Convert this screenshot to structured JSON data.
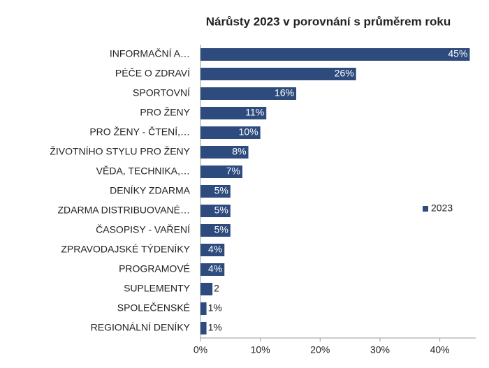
{
  "chart_data": {
    "type": "barh",
    "title": "Nárůsty 2023 v porovnání s průměrem roku",
    "categories": [
      "INFORMAČNÍ A…",
      "PÉČE O ZDRAVÍ",
      "SPORTOVNÍ",
      "PRO ŽENY",
      "PRO ŽENY - ČTENÍ,…",
      "ŽIVOTNÍHO STYLU PRO ŽENY",
      "VĚDA, TECHNIKA,…",
      "DENÍKY ZDARMA",
      "ZDARMA DISTRIBUOVANÉ…",
      "ČASOPISY - VAŘENÍ",
      "ZPRAVODAJSKÉ TÝDENÍKY",
      "PROGRAMOVÉ",
      "SUPLEMENTY",
      "SPOLEČENSKÉ",
      "REGIONÁLNÍ DENÍKY"
    ],
    "series": [
      {
        "name": "2023",
        "color": "#2e4b7d",
        "values": [
          45,
          26,
          16,
          11,
          10,
          8,
          7,
          5,
          5,
          5,
          4,
          4,
          2,
          1,
          1
        ],
        "value_labels": [
          "45%",
          "26%",
          "16%",
          "11%",
          "10%",
          "8%",
          "7%",
          "5%",
          "5%",
          "5%",
          "4%",
          "4%",
          "2",
          "1%",
          "1%"
        ]
      }
    ],
    "xlim": [
      0,
      46
    ],
    "xticks": [
      {
        "value": 0,
        "label": "0%"
      },
      {
        "value": 10,
        "label": "10%"
      },
      {
        "value": 20,
        "label": "20%"
      },
      {
        "value": 30,
        "label": "30%"
      },
      {
        "value": 40,
        "label": "40%"
      }
    ],
    "legend": "right"
  }
}
